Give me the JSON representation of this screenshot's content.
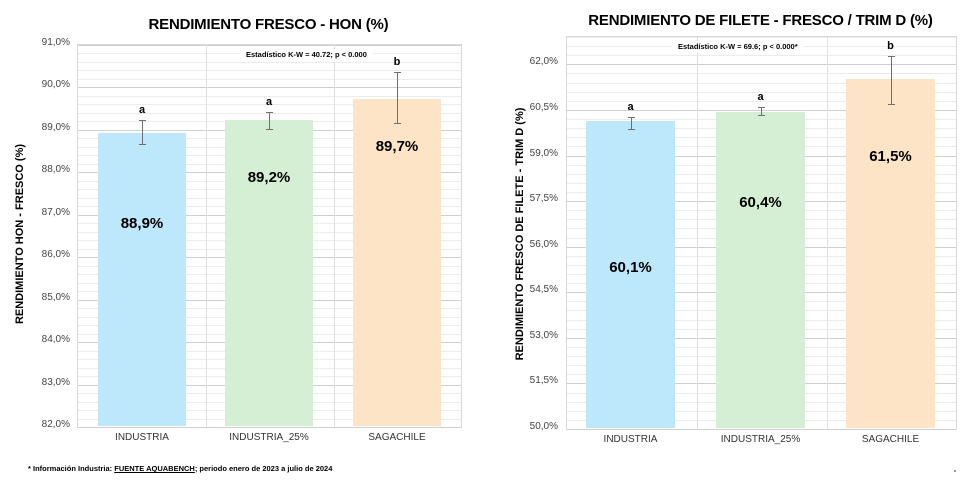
{
  "chart_data": [
    {
      "type": "bar",
      "title": "RENDIMIENTO FRESCO - HON (%)",
      "xlabel": "",
      "ylabel": "RENDIMIENTO HON - FRESCO (%)",
      "categories": [
        "INDUSTRIA",
        "INDUSTRIA_25%",
        "SAGACHILE"
      ],
      "values": [
        88.9,
        89.2,
        89.7
      ],
      "value_labels": [
        "88,9%",
        "89,2%",
        "89,7%"
      ],
      "error_bars": [
        {
          "low": 88.65,
          "high": 89.2
        },
        {
          "low": 89.0,
          "high": 89.4
        },
        {
          "low": 89.15,
          "high": 90.35
        }
      ],
      "significance_letters": [
        "a",
        "a",
        "b"
      ],
      "colors": [
        "#bde8fb",
        "#d5efd5",
        "#fde4c6"
      ],
      "ylim": [
        82.0,
        91.0
      ],
      "yticks": [
        82.0,
        83.0,
        84.0,
        85.0,
        86.0,
        87.0,
        88.0,
        89.0,
        90.0,
        91.0
      ],
      "ytick_labels": [
        "82,0%",
        "83,0%",
        "84,0%",
        "85,0%",
        "86,0%",
        "87,0%",
        "88,0%",
        "89,0%",
        "90,0%",
        "91,0%"
      ],
      "annotation": "Estadístico K-W = 40.72; p < 0.000",
      "grid": true,
      "legend": "none"
    },
    {
      "type": "bar",
      "title": "RENDIMIENTO DE FILETE - FRESCO / TRIM D (%)",
      "xlabel": "",
      "ylabel": "RENDIMIENTO FRESCO DE FILETE - TRIM D (%)",
      "categories": [
        "INDUSTRIA",
        "INDUSTRIA_25%",
        "SAGACHILE"
      ],
      "values": [
        60.1,
        60.4,
        61.5
      ],
      "value_labels": [
        "60,1%",
        "60,4%",
        "61,5%"
      ],
      "error_bars": [
        {
          "low": 59.85,
          "high": 60.25
        },
        {
          "low": 60.3,
          "high": 60.55
        },
        {
          "low": 60.65,
          "high": 62.25
        }
      ],
      "significance_letters": [
        "a",
        "a",
        "b"
      ],
      "colors": [
        "#bde8fb",
        "#d5efd5",
        "#fde4c6"
      ],
      "ylim": [
        50.0,
        62.9
      ],
      "yticks": [
        50.0,
        51.5,
        53.0,
        54.5,
        56.0,
        57.5,
        59.0,
        60.5,
        62.0
      ],
      "ytick_labels": [
        "50,0%",
        "51,5%",
        "53,0%",
        "54,5%",
        "56,0%",
        "57,5%",
        "59,0%",
        "60,5%",
        "62,0%"
      ],
      "annotation": "Estadístico K-W = 69.6; p < 0.000*",
      "grid": true,
      "legend": "none"
    }
  ],
  "footnote": {
    "prefix": "* Información Industria: ",
    "link": "FUENTE AQUABENCH",
    "suffix": "; periodo enero de 2023 a julio de 2024"
  }
}
